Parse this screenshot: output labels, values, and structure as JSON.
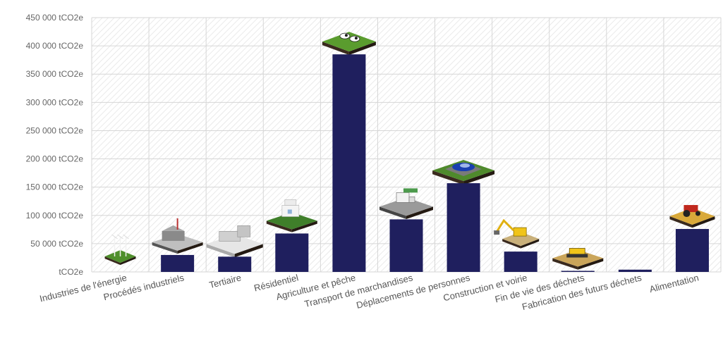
{
  "chart_data": {
    "type": "bar",
    "categories": [
      "Industries de l'énergie",
      "Procédés industriels",
      "Tertiaire",
      "Résidentiel",
      "Agriculture et pêche",
      "Transport de marchandises",
      "Déplacements de personnes",
      "Construction et voirie",
      "Fin de vie des déchets",
      "Fabrication des futurs déchets",
      "Alimentation"
    ],
    "values": [
      0,
      30000,
      27000,
      68000,
      385000,
      93000,
      157000,
      36000,
      1500,
      4000,
      76000
    ],
    "ylim": [
      0,
      450000
    ],
    "yticks": [
      {
        "value": 0,
        "label": "tCO2e"
      },
      {
        "value": 50000,
        "label": "50 000 tCO2e"
      },
      {
        "value": 100000,
        "label": "100 000 tCO2e"
      },
      {
        "value": 150000,
        "label": "150 000 tCO2e"
      },
      {
        "value": 200000,
        "label": "200 000 tCO2e"
      },
      {
        "value": 250000,
        "label": "250 000 tCO2e"
      },
      {
        "value": 300000,
        "label": "300 000 tCO2e"
      },
      {
        "value": 350000,
        "label": "350 000 tCO2e"
      },
      {
        "value": 400000,
        "label": "400 000 tCO2e"
      },
      {
        "value": 450000,
        "label": "450 000 tCO2e"
      }
    ],
    "grid": true,
    "legend": "none",
    "bar_color": "#1f1f5e",
    "icons": [
      "wind-turbines-icon",
      "factory-icon",
      "office-building-icon",
      "house-icon",
      "cows-on-grass-icon",
      "delivery-truck-icon",
      "blue-car-icon",
      "excavator-icon",
      "bulldozer-icon",
      "",
      "tractor-icon"
    ]
  }
}
